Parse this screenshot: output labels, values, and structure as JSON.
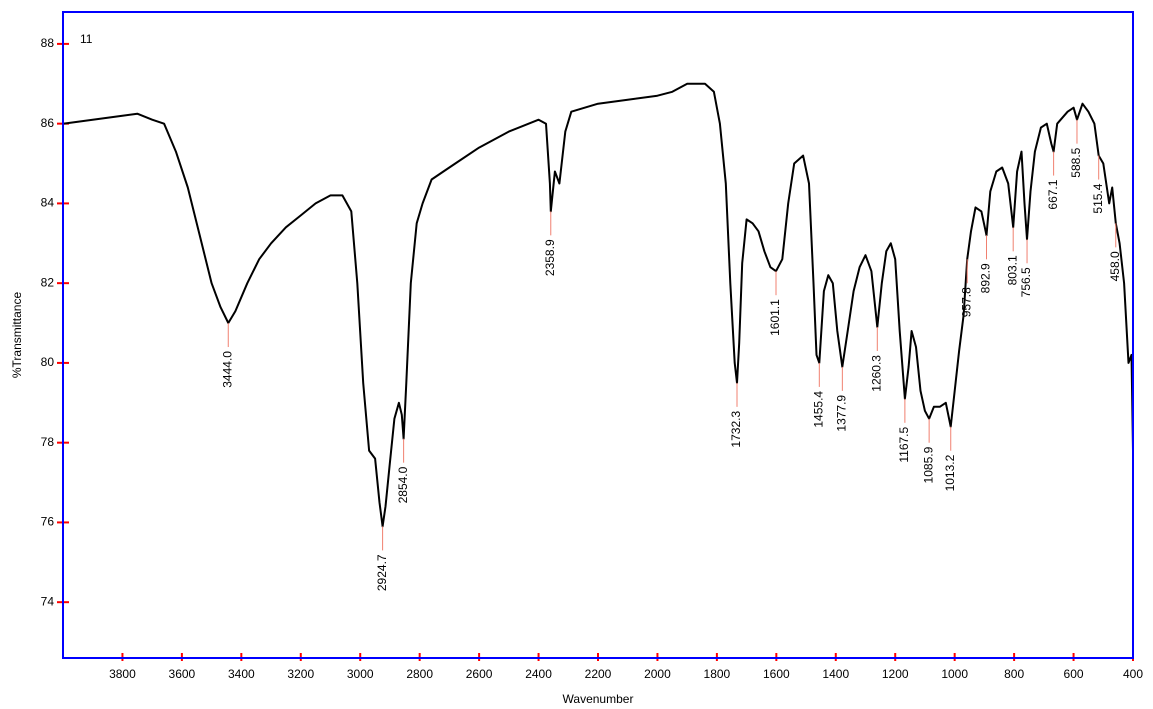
{
  "chart_data": {
    "type": "line",
    "title": "11",
    "x_label": "Wavenumber",
    "y_label": "%Transmittance",
    "color": "#000000",
    "frame_color": "#0000ff",
    "tick_color": "#ff0000",
    "peak_line_color": "#f08070",
    "xlim": [
      4000,
      400
    ],
    "ylim": [
      72.6,
      88.8
    ],
    "xticks": [
      3800,
      3600,
      3400,
      3200,
      3000,
      2800,
      2600,
      2400,
      2200,
      2000,
      1800,
      1600,
      1400,
      1200,
      1000,
      800,
      600,
      400
    ],
    "yticks": [
      74,
      76,
      78,
      80,
      82,
      84,
      86,
      88
    ],
    "x": [
      4000,
      3900,
      3800,
      3750,
      3700,
      3660,
      3620,
      3580,
      3540,
      3500,
      3470,
      3444,
      3420,
      3380,
      3340,
      3300,
      3250,
      3200,
      3150,
      3100,
      3060,
      3030,
      3010,
      2990,
      2970,
      2950,
      2935,
      2924.7,
      2915,
      2900,
      2885,
      2870,
      2860,
      2854,
      2845,
      2830,
      2810,
      2790,
      2760,
      2720,
      2680,
      2600,
      2500,
      2400,
      2375,
      2362,
      2358.9,
      2345,
      2330,
      2310,
      2290,
      2200,
      2100,
      2000,
      1950,
      1900,
      1840,
      1810,
      1790,
      1770,
      1755,
      1740,
      1732.3,
      1725,
      1715,
      1700,
      1680,
      1660,
      1640,
      1620,
      1601.1,
      1580,
      1560,
      1540,
      1510,
      1490,
      1475,
      1465,
      1455.4,
      1440,
      1425,
      1410,
      1395,
      1377.9,
      1360,
      1340,
      1320,
      1300,
      1280,
      1260.3,
      1245,
      1230,
      1215,
      1200,
      1185,
      1167.5,
      1155,
      1145,
      1130,
      1115,
      1100,
      1085.9,
      1070,
      1050,
      1030,
      1013.2,
      1000,
      985,
      970,
      957.8,
      945,
      930,
      910,
      892.9,
      880,
      860,
      840,
      820,
      803.1,
      790,
      775,
      765,
      756.5,
      745,
      730,
      710,
      690,
      675,
      667.1,
      655,
      620,
      600,
      588.5,
      570,
      550,
      530,
      515.4,
      500,
      480,
      470,
      458,
      445,
      430,
      415,
      405,
      400
    ],
    "values": [
      86.0,
      86.1,
      86.2,
      86.25,
      86.1,
      86.0,
      85.3,
      84.4,
      83.2,
      82.0,
      81.4,
      81.0,
      81.3,
      82.0,
      82.6,
      83.0,
      83.4,
      83.7,
      84.0,
      84.2,
      84.2,
      83.8,
      82.0,
      79.5,
      77.8,
      77.6,
      76.5,
      75.9,
      76.4,
      77.5,
      78.6,
      79.0,
      78.7,
      78.1,
      79.5,
      82.0,
      83.5,
      84.0,
      84.6,
      84.8,
      85.0,
      85.4,
      85.8,
      86.1,
      86.0,
      84.5,
      83.8,
      84.8,
      84.5,
      85.8,
      86.3,
      86.5,
      86.6,
      86.7,
      86.8,
      87.0,
      87.0,
      86.8,
      86.0,
      84.5,
      82.0,
      80.0,
      79.5,
      80.5,
      82.5,
      83.6,
      83.5,
      83.3,
      82.8,
      82.4,
      82.3,
      82.6,
      84.0,
      85.0,
      85.2,
      84.5,
      82.0,
      80.2,
      80.0,
      81.8,
      82.2,
      82.0,
      80.8,
      79.9,
      80.8,
      81.8,
      82.4,
      82.7,
      82.3,
      80.9,
      82.0,
      82.8,
      83.0,
      82.6,
      80.8,
      79.1,
      79.9,
      80.8,
      80.4,
      79.3,
      78.8,
      78.6,
      78.9,
      78.9,
      79.0,
      78.4,
      79.3,
      80.3,
      81.2,
      82.6,
      83.3,
      83.9,
      83.8,
      83.2,
      84.3,
      84.8,
      84.9,
      84.5,
      83.4,
      84.8,
      85.3,
      84.0,
      83.1,
      84.3,
      85.3,
      85.9,
      86.0,
      85.5,
      85.3,
      86.0,
      86.3,
      86.4,
      86.1,
      86.5,
      86.3,
      86.0,
      85.2,
      85.0,
      84.0,
      84.4,
      83.5,
      83.0,
      82.0,
      80.0,
      80.2,
      77.8
    ],
    "peaks": [
      {
        "x": 3444,
        "y": 81.0,
        "label": "3444.0"
      },
      {
        "x": 2924.7,
        "y": 75.9,
        "label": "2924.7"
      },
      {
        "x": 2854,
        "y": 78.1,
        "label": "2854.0"
      },
      {
        "x": 2358.9,
        "y": 83.8,
        "label": "2358.9"
      },
      {
        "x": 1732.3,
        "y": 79.5,
        "label": "1732.3"
      },
      {
        "x": 1601.1,
        "y": 82.3,
        "label": "1601.1"
      },
      {
        "x": 1455.4,
        "y": 80.0,
        "label": "1455.4"
      },
      {
        "x": 1377.9,
        "y": 79.9,
        "label": "1377.9"
      },
      {
        "x": 1260.3,
        "y": 80.9,
        "label": "1260.3"
      },
      {
        "x": 1167.5,
        "y": 79.1,
        "label": "1167.5"
      },
      {
        "x": 1085.9,
        "y": 78.6,
        "label": "1085.9"
      },
      {
        "x": 1013.2,
        "y": 78.4,
        "label": "1013.2"
      },
      {
        "x": 957.8,
        "y": 82.6,
        "label": "957.8"
      },
      {
        "x": 892.9,
        "y": 83.2,
        "label": "892.9"
      },
      {
        "x": 803.1,
        "y": 83.4,
        "label": "803.1"
      },
      {
        "x": 756.5,
        "y": 83.1,
        "label": "756.5"
      },
      {
        "x": 667.1,
        "y": 85.3,
        "label": "667.1"
      },
      {
        "x": 588.5,
        "y": 86.1,
        "label": "588.5"
      },
      {
        "x": 515.4,
        "y": 85.2,
        "label": "515.4"
      },
      {
        "x": 458,
        "y": 83.5,
        "label": "458.0"
      }
    ]
  }
}
